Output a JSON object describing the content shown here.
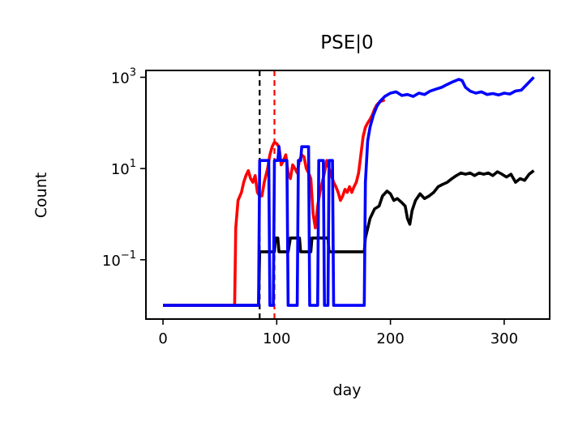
{
  "chart_data": {
    "type": "line",
    "title": "PSE|0",
    "xlabel": "day",
    "ylabel": "Count",
    "xlim": [
      -15,
      340
    ],
    "ylim_log10": [
      -2.3,
      3.15
    ],
    "yscale": "log",
    "xticks": [
      0,
      100,
      200,
      300
    ],
    "yticks": [
      {
        "base": "10",
        "exp": "3",
        "value": 1000
      },
      {
        "base": "10",
        "exp": "1",
        "value": 10
      },
      {
        "base": "10",
        "exp": "−1",
        "value": 0.1
      }
    ],
    "grid": false,
    "vlines": [
      {
        "x": 85,
        "color": "#000000",
        "style": "dashed"
      },
      {
        "x": 98,
        "color": "#ff0000",
        "style": "dashed"
      }
    ],
    "series": [
      {
        "color": "#000000",
        "points": [
          [
            0,
            0.01
          ],
          [
            84,
            0.01
          ],
          [
            85,
            0.15
          ],
          [
            98,
            0.15
          ],
          [
            99,
            0.3
          ],
          [
            101,
            0.3
          ],
          [
            102,
            0.15
          ],
          [
            110,
            0.15
          ],
          [
            112,
            0.3
          ],
          [
            120,
            0.3
          ],
          [
            121,
            0.15
          ],
          [
            130,
            0.15
          ],
          [
            131,
            0.3
          ],
          [
            145,
            0.3
          ],
          [
            146,
            0.15
          ],
          [
            177,
            0.15
          ],
          [
            178,
            0.3
          ],
          [
            182,
            0.8
          ],
          [
            186,
            1.3
          ],
          [
            190,
            1.5
          ],
          [
            193,
            2.5
          ],
          [
            197,
            3.2
          ],
          [
            200,
            2.8
          ],
          [
            203,
            2.0
          ],
          [
            206,
            2.2
          ],
          [
            210,
            1.8
          ],
          [
            213,
            1.5
          ],
          [
            215,
            0.8
          ],
          [
            217,
            0.6
          ],
          [
            219,
            1.2
          ],
          [
            222,
            2.0
          ],
          [
            226,
            2.8
          ],
          [
            230,
            2.2
          ],
          [
            234,
            2.5
          ],
          [
            238,
            3.0
          ],
          [
            242,
            4.0
          ],
          [
            246,
            4.5
          ],
          [
            250,
            5.0
          ],
          [
            254,
            6.0
          ],
          [
            258,
            7.0
          ],
          [
            262,
            8.0
          ],
          [
            266,
            7.5
          ],
          [
            270,
            8.0
          ],
          [
            274,
            7.0
          ],
          [
            278,
            8.0
          ],
          [
            282,
            7.5
          ],
          [
            286,
            8.0
          ],
          [
            290,
            7.0
          ],
          [
            294,
            8.5
          ],
          [
            298,
            7.5
          ],
          [
            302,
            6.5
          ],
          [
            306,
            7.5
          ],
          [
            310,
            5.0
          ],
          [
            314,
            6.0
          ],
          [
            318,
            5.5
          ],
          [
            322,
            7.5
          ],
          [
            326,
            9.0
          ]
        ]
      },
      {
        "color": "#ff0000",
        "points": [
          [
            0,
            0.01
          ],
          [
            63,
            0.01
          ],
          [
            64,
            0.5
          ],
          [
            66,
            2.0
          ],
          [
            69,
            3.0
          ],
          [
            71,
            5.0
          ],
          [
            73,
            7.0
          ],
          [
            75,
            9.0
          ],
          [
            77,
            6.0
          ],
          [
            79,
            5.0
          ],
          [
            81,
            7.0
          ],
          [
            83,
            3.0
          ],
          [
            85,
            2.5
          ],
          [
            87,
            2.5
          ],
          [
            89,
            5.0
          ],
          [
            92,
            10.0
          ],
          [
            94,
            20.0
          ],
          [
            96,
            30.0
          ],
          [
            98,
            38.0
          ],
          [
            100,
            35.0
          ],
          [
            102,
            30.0
          ],
          [
            104,
            12.0
          ],
          [
            106,
            15.0
          ],
          [
            108,
            20.0
          ],
          [
            110,
            8.0
          ],
          [
            112,
            6.0
          ],
          [
            114,
            12.0
          ],
          [
            116,
            10.0
          ],
          [
            118,
            8.0
          ],
          [
            120,
            15.0
          ],
          [
            122,
            20.0
          ],
          [
            124,
            18.0
          ],
          [
            126,
            10.0
          ],
          [
            128,
            8.0
          ],
          [
            130,
            6.0
          ],
          [
            132,
            1.0
          ],
          [
            134,
            0.5
          ],
          [
            136,
            1.5
          ],
          [
            138,
            3.0
          ],
          [
            140,
            5.0
          ],
          [
            142,
            8.0
          ],
          [
            144,
            15.0
          ],
          [
            146,
            10.0
          ],
          [
            148,
            7.0
          ],
          [
            150,
            5.0
          ],
          [
            152,
            4.0
          ],
          [
            154,
            3.0
          ],
          [
            156,
            2.0
          ],
          [
            158,
            2.5
          ],
          [
            160,
            3.5
          ],
          [
            162,
            3.0
          ],
          [
            164,
            4.0
          ],
          [
            166,
            3.0
          ],
          [
            168,
            4.0
          ],
          [
            170,
            5.0
          ],
          [
            172,
            8.0
          ],
          [
            174,
            20.0
          ],
          [
            176,
            50.0
          ],
          [
            178,
            80.0
          ],
          [
            180,
            100.0
          ],
          [
            182,
            120.0
          ],
          [
            184,
            150.0
          ],
          [
            186,
            200.0
          ],
          [
            188,
            250.0
          ],
          [
            190,
            280.0
          ],
          [
            192,
            300.0
          ],
          [
            195,
            320.0
          ]
        ]
      },
      {
        "color": "#0000ff",
        "points": [
          [
            0,
            0.01
          ],
          [
            84,
            0.01
          ],
          [
            85,
            15.0
          ],
          [
            93,
            15.0
          ],
          [
            94,
            0.01
          ],
          [
            97,
            0.01
          ],
          [
            98,
            15.0
          ],
          [
            101,
            15.0
          ],
          [
            102,
            30.0
          ],
          [
            103,
            15.0
          ],
          [
            109,
            15.0
          ],
          [
            110,
            0.01
          ],
          [
            118,
            0.01
          ],
          [
            119,
            15.0
          ],
          [
            121,
            15.0
          ],
          [
            122,
            30.0
          ],
          [
            128,
            30.0
          ],
          [
            129,
            0.01
          ],
          [
            136,
            0.01
          ],
          [
            137,
            15.0
          ],
          [
            141,
            15.0
          ],
          [
            142,
            0.01
          ],
          [
            145,
            0.01
          ],
          [
            146,
            15.0
          ],
          [
            149,
            15.0
          ],
          [
            150,
            0.01
          ],
          [
            177,
            0.01
          ],
          [
            178,
            5.0
          ],
          [
            180,
            40.0
          ],
          [
            182,
            80.0
          ],
          [
            185,
            150.0
          ],
          [
            188,
            230.0
          ],
          [
            191,
            300.0
          ],
          [
            195,
            380.0
          ],
          [
            200,
            450.0
          ],
          [
            205,
            480.0
          ],
          [
            210,
            400.0
          ],
          [
            215,
            420.0
          ],
          [
            220,
            380.0
          ],
          [
            225,
            450.0
          ],
          [
            230,
            420.0
          ],
          [
            235,
            500.0
          ],
          [
            240,
            550.0
          ],
          [
            245,
            600.0
          ],
          [
            250,
            700.0
          ],
          [
            255,
            800.0
          ],
          [
            260,
            900.0
          ],
          [
            263,
            850.0
          ],
          [
            266,
            600.0
          ],
          [
            270,
            500.0
          ],
          [
            275,
            450.0
          ],
          [
            280,
            480.0
          ],
          [
            285,
            420.0
          ],
          [
            290,
            440.0
          ],
          [
            295,
            410.0
          ],
          [
            300,
            450.0
          ],
          [
            305,
            430.0
          ],
          [
            310,
            500.0
          ],
          [
            315,
            520.0
          ],
          [
            320,
            700.0
          ],
          [
            326,
            1000.0
          ]
        ]
      }
    ]
  }
}
